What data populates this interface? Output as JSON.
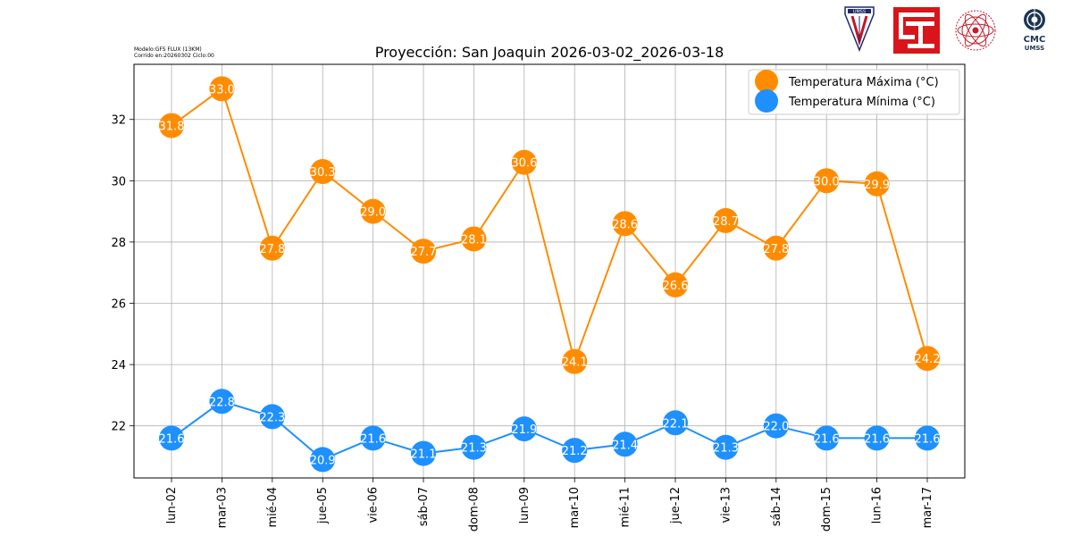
{
  "model_info": {
    "line1": "Modelo:GFS FLUX (13KM)",
    "line2": "Corrido en:20260302 Ciclo:00"
  },
  "logos": {
    "umss_label": "UMSS",
    "cmc_label1": "CMC",
    "cmc_label2": "UMSS"
  },
  "colors": {
    "max": "#ff8c00",
    "min": "#1e90ff",
    "grid": "#b0b0b0"
  },
  "chart_data": {
    "type": "line",
    "title": "Proyección: San Joaquin 2026-03-02_2026-03-18",
    "xlabel": "",
    "ylabel": "",
    "categories": [
      "lun-02",
      "mar-03",
      "mié-04",
      "jue-05",
      "vie-06",
      "sáb-07",
      "dom-08",
      "lun-09",
      "mar-10",
      "mié-11",
      "jue-12",
      "vie-13",
      "sáb-14",
      "dom-15",
      "lun-16",
      "mar-17"
    ],
    "ylim": [
      20.3,
      33.8
    ],
    "yticks": [
      22,
      24,
      26,
      28,
      30,
      32
    ],
    "grid": true,
    "legend_position": "top-right",
    "series": [
      {
        "name": "Temperatura Máxima  (°C)",
        "values": [
          31.8,
          33.0,
          27.8,
          30.3,
          29.0,
          27.7,
          28.1,
          30.6,
          24.1,
          28.6,
          26.6,
          28.7,
          27.8,
          30.0,
          29.9,
          24.2
        ],
        "labels": [
          "31.8",
          "33.0",
          "27.8",
          "30.3",
          "29.0",
          "27.7",
          "28.1",
          "30.6",
          "24.1",
          "28.6",
          "26.6",
          "28.7",
          "27.8",
          "30.0",
          "29.9",
          "24.2"
        ]
      },
      {
        "name": "Temperatura Mínima  (°C)",
        "values": [
          21.6,
          22.8,
          22.3,
          20.9,
          21.6,
          21.1,
          21.3,
          21.9,
          21.2,
          21.4,
          22.1,
          21.3,
          22.0,
          21.6,
          21.6,
          21.6
        ],
        "labels": [
          "21.6",
          "22.8",
          "22.3",
          "20.9",
          "21.6",
          "21.1",
          "21.3",
          "21.9",
          "21.2",
          "21.4",
          "22.1",
          "21.3",
          "22.0",
          "21.6",
          "21.6",
          "21.6"
        ]
      }
    ]
  }
}
